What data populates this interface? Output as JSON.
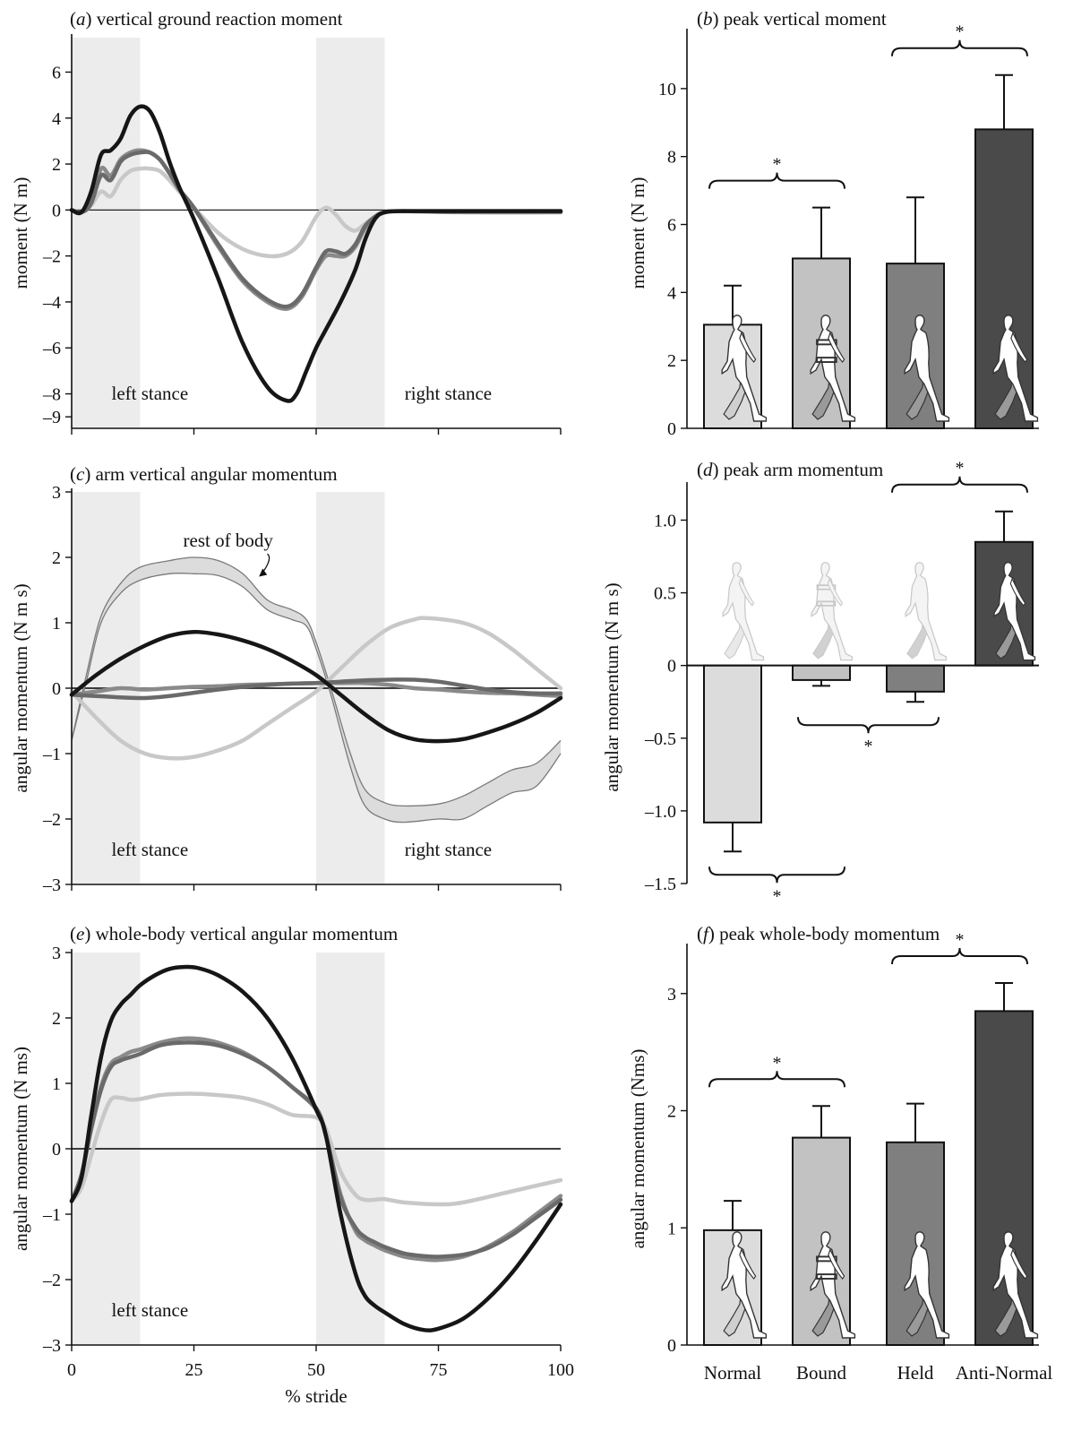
{
  "colors": {
    "normal": "#c8c8c8",
    "bound": "#8a8a8a",
    "held": "#6a6a6a",
    "anti_normal": "#161616",
    "bar_normal": "#dcdcdc",
    "bar_bound": "#c2c2c2",
    "bar_held": "#7f7f7f",
    "bar_anti": "#4a4a4a",
    "stance_shade": "#ececec"
  },
  "condition_labels": [
    "Normal",
    "Bound",
    "Held",
    "Anti-Normal"
  ],
  "line_x_label": "% stride",
  "chart_data": [
    {
      "id": "a",
      "type": "line",
      "title": "(a) vertical ground reaction moment",
      "title_letter": "a",
      "title_text": "vertical ground reaction moment",
      "ylabel": "moment (N m)",
      "xlabel": "% stride",
      "xlim": [
        0,
        100
      ],
      "ylim": [
        -9.5,
        7.5
      ],
      "y_ticks": [
        6,
        4,
        2,
        0,
        -2,
        -4,
        -6,
        -8,
        -9
      ],
      "x_ticks": [
        0,
        25,
        50,
        75,
        100
      ],
      "shaded_x": [
        [
          0,
          14
        ],
        [
          50,
          64
        ]
      ],
      "region_labels": [
        "left stance",
        "right stance"
      ],
      "series": [
        {
          "key": "normal",
          "x": [
            0,
            2,
            4,
            6,
            8,
            10,
            12,
            14,
            16,
            18,
            20,
            22,
            25,
            30,
            35,
            40,
            44,
            47,
            50,
            52,
            54,
            56,
            58,
            60,
            62,
            64,
            68,
            80,
            100
          ],
          "y": [
            0,
            -0.1,
            0.2,
            0.8,
            0.6,
            1.3,
            1.7,
            1.8,
            1.8,
            1.7,
            1.3,
            0.8,
            0.1,
            -1,
            -1.7,
            -2,
            -1.9,
            -1.4,
            -0.3,
            0.1,
            -0.2,
            -0.7,
            -0.9,
            -0.6,
            -0.3,
            -0.1,
            -0.05,
            -0.1,
            -0.1
          ]
        },
        {
          "key": "bound",
          "x": [
            0,
            2,
            4,
            6,
            8,
            10,
            12,
            14,
            16,
            18,
            20,
            22,
            25,
            30,
            35,
            40,
            44,
            47,
            50,
            52,
            54,
            56,
            58,
            60,
            62,
            64,
            68,
            80,
            100
          ],
          "y": [
            0,
            -0.1,
            0.3,
            1.8,
            1.5,
            2.2,
            2.5,
            2.6,
            2.5,
            2.2,
            1.6,
            0.9,
            0.1,
            -1.6,
            -3.1,
            -4,
            -4.3,
            -3.8,
            -2.6,
            -2,
            -2,
            -2,
            -1.6,
            -0.8,
            -0.3,
            -0.1,
            -0.05,
            -0.1,
            -0.1
          ]
        },
        {
          "key": "held",
          "x": [
            0,
            2,
            4,
            6,
            8,
            10,
            12,
            14,
            16,
            18,
            20,
            22,
            25,
            30,
            35,
            40,
            44,
            47,
            50,
            52,
            54,
            56,
            58,
            60,
            62,
            64,
            68,
            80,
            100
          ],
          "y": [
            0,
            -0.1,
            0.3,
            1.5,
            1.3,
            2.1,
            2.4,
            2.5,
            2.5,
            2.2,
            1.6,
            0.9,
            0.1,
            -1.5,
            -3,
            -3.9,
            -4.2,
            -3.7,
            -2.5,
            -1.8,
            -1.8,
            -1.9,
            -1.5,
            -0.7,
            -0.3,
            -0.1,
            -0.05,
            -0.05,
            -0.05
          ]
        },
        {
          "key": "anti_normal",
          "x": [
            0,
            2,
            4,
            6,
            8,
            10,
            12,
            14,
            16,
            18,
            20,
            22,
            25,
            30,
            35,
            40,
            44,
            46,
            48,
            50,
            52,
            55,
            58,
            60,
            62,
            64,
            68,
            80,
            100
          ],
          "y": [
            0,
            -0.1,
            0.8,
            2.4,
            2.6,
            3.1,
            4.1,
            4.5,
            4.3,
            3.4,
            2.1,
            1,
            -0.4,
            -3,
            -5.8,
            -7.7,
            -8.3,
            -8,
            -7,
            -6,
            -5.2,
            -4,
            -2.6,
            -1.3,
            -0.4,
            -0.1,
            -0.05,
            -0.05,
            -0.05
          ]
        }
      ]
    },
    {
      "id": "b",
      "type": "bar",
      "title": "(b) peak vertical moment",
      "title_letter": "b",
      "title_text": "peak vertical moment",
      "ylabel": "moment (N m)",
      "ylim": [
        0,
        11.5
      ],
      "y_ticks": [
        0,
        2,
        4,
        6,
        8,
        10
      ],
      "categories": [
        "Normal",
        "Bound",
        "Held",
        "Anti-Normal"
      ],
      "values": [
        3.05,
        5.0,
        4.85,
        8.8
      ],
      "errors": [
        1.15,
        1.5,
        1.95,
        1.6
      ],
      "significance": [
        {
          "from": 0,
          "to": 1,
          "label": "*",
          "side": "above"
        },
        {
          "from": 2,
          "to": 3,
          "label": "*",
          "side": "above"
        }
      ]
    },
    {
      "id": "c",
      "type": "line",
      "title": "(c) arm vertical angular momentum",
      "title_letter": "c",
      "title_text": "arm vertical angular momentum",
      "ylabel": "angular momentum (N m s)",
      "xlabel": "% stride",
      "xlim": [
        0,
        100
      ],
      "ylim": [
        -3,
        3
      ],
      "y_ticks": [
        3,
        2,
        1,
        0,
        -1,
        -2,
        -3
      ],
      "x_ticks": [
        0,
        25,
        50,
        75,
        100
      ],
      "shaded_x": [
        [
          0,
          14
        ],
        [
          50,
          64
        ]
      ],
      "region_labels": [
        "left stance",
        "right stance"
      ],
      "annotations": [
        "rest of body"
      ],
      "rest_of_body_band": {
        "x": [
          0,
          3,
          6,
          10,
          14,
          20,
          25,
          30,
          35,
          40,
          45,
          48,
          50,
          53,
          57,
          60,
          64,
          68,
          75,
          80,
          85,
          90,
          95,
          100
        ],
        "upper": [
          -0.8,
          0.2,
          1.1,
          1.6,
          1.85,
          1.95,
          2.0,
          1.95,
          1.75,
          1.35,
          1.2,
          1.05,
          0.7,
          0.0,
          -1.0,
          -1.55,
          -1.75,
          -1.8,
          -1.77,
          -1.65,
          -1.45,
          -1.25,
          -1.15,
          -0.8
        ],
        "lower": [
          -0.8,
          0.1,
          1.0,
          1.45,
          1.65,
          1.75,
          1.75,
          1.72,
          1.55,
          1.2,
          1.05,
          0.95,
          0.6,
          -0.1,
          -1.2,
          -1.8,
          -2.0,
          -2.05,
          -2.0,
          -2.0,
          -1.8,
          -1.6,
          -1.5,
          -1.0
        ]
      },
      "series": [
        {
          "key": "normal",
          "x": [
            0,
            5,
            10,
            15,
            20,
            25,
            30,
            35,
            40,
            45,
            50,
            55,
            60,
            65,
            70,
            73,
            80,
            85,
            90,
            95,
            100
          ],
          "y": [
            -0.05,
            -0.45,
            -0.8,
            -1.0,
            -1.07,
            -1.05,
            -0.95,
            -0.8,
            -0.55,
            -0.3,
            -0.05,
            0.3,
            0.65,
            0.92,
            1.05,
            1.07,
            1.0,
            0.85,
            0.6,
            0.3,
            0.0
          ]
        },
        {
          "key": "bound",
          "x": [
            0,
            5,
            10,
            15,
            20,
            25,
            30,
            35,
            40,
            45,
            50,
            55,
            60,
            65,
            70,
            75,
            80,
            85,
            90,
            95,
            100
          ],
          "y": [
            -0.1,
            -0.05,
            0.0,
            -0.02,
            0.0,
            0.02,
            0.03,
            0.05,
            0.06,
            0.07,
            0.08,
            0.08,
            0.08,
            0.05,
            0.0,
            -0.02,
            -0.05,
            -0.07,
            -0.08,
            -0.1,
            -0.12
          ]
        },
        {
          "key": "held",
          "x": [
            0,
            5,
            10,
            15,
            20,
            25,
            30,
            35,
            40,
            45,
            50,
            55,
            60,
            65,
            70,
            75,
            80,
            85,
            90,
            95,
            100
          ],
          "y": [
            -0.1,
            -0.12,
            -0.14,
            -0.15,
            -0.12,
            -0.07,
            -0.02,
            0.02,
            0.05,
            0.07,
            0.08,
            0.1,
            0.12,
            0.13,
            0.13,
            0.1,
            0.04,
            -0.02,
            -0.06,
            -0.08,
            -0.08
          ]
        },
        {
          "key": "anti_normal",
          "x": [
            0,
            5,
            10,
            15,
            20,
            25,
            30,
            35,
            40,
            45,
            50,
            55,
            60,
            65,
            70,
            75,
            80,
            85,
            90,
            95,
            100
          ],
          "y": [
            -0.1,
            0.2,
            0.45,
            0.65,
            0.8,
            0.86,
            0.82,
            0.73,
            0.6,
            0.42,
            0.2,
            -0.1,
            -0.4,
            -0.65,
            -0.78,
            -0.81,
            -0.78,
            -0.68,
            -0.55,
            -0.38,
            -0.15
          ]
        }
      ]
    },
    {
      "id": "d",
      "type": "bar",
      "title": "(d) peak arm momentum",
      "title_letter": "d",
      "title_text": "peak arm momentum",
      "ylabel": "angular momentum (N m s)",
      "ylim": [
        -1.5,
        1.2
      ],
      "y_ticks": [
        -1.5,
        -1.0,
        -0.5,
        0,
        0.5,
        1.0
      ],
      "y_tick_labels": [
        "–1.5",
        "–1.0",
        "–0.5",
        "0",
        "0.5",
        "1.0"
      ],
      "categories": [
        "Normal",
        "Bound",
        "Held",
        "Anti-Normal"
      ],
      "values": [
        -1.08,
        -0.1,
        -0.18,
        0.85
      ],
      "errors": [
        0.2,
        0.04,
        0.07,
        0.21
      ],
      "significance": [
        {
          "from": 2,
          "to": 3,
          "label": "*",
          "side": "above"
        },
        {
          "from": 1,
          "to": 2,
          "label": "*",
          "side": "below"
        },
        {
          "from": 0,
          "to": 1,
          "label": "*",
          "side": "below"
        }
      ]
    },
    {
      "id": "e",
      "type": "line",
      "title": "(e) whole-body vertical angular momentum",
      "title_letter": "e",
      "title_text": "whole-body vertical angular momentum",
      "ylabel": "angular momentum (N ms)",
      "xlabel": "% stride",
      "xlim": [
        0,
        100
      ],
      "ylim": [
        -3,
        3
      ],
      "y_ticks": [
        3,
        2,
        1,
        0,
        -1,
        -2,
        -3
      ],
      "x_ticks": [
        0,
        25,
        50,
        75,
        100
      ],
      "shaded_x": [
        [
          0,
          14
        ],
        [
          50,
          64
        ]
      ],
      "region_labels": [
        "left stance"
      ],
      "series": [
        {
          "key": "normal",
          "x": [
            0,
            2,
            4,
            6,
            8,
            10,
            12,
            14,
            18,
            22,
            26,
            30,
            35,
            40,
            45,
            50,
            52,
            55,
            58,
            60,
            62,
            64,
            68,
            75,
            80,
            90,
            100
          ],
          "y": [
            -0.8,
            -0.6,
            -0.1,
            0.4,
            0.75,
            0.78,
            0.75,
            0.76,
            0.82,
            0.84,
            0.84,
            0.82,
            0.78,
            0.68,
            0.52,
            0.48,
            0.3,
            -0.35,
            -0.7,
            -0.78,
            -0.78,
            -0.77,
            -0.82,
            -0.85,
            -0.82,
            -0.65,
            -0.48
          ]
        },
        {
          "key": "bound",
          "x": [
            0,
            2,
            4,
            6,
            8,
            10,
            12,
            14,
            18,
            22,
            26,
            30,
            35,
            40,
            45,
            50,
            52,
            55,
            58,
            60,
            62,
            64,
            68,
            72,
            75,
            80,
            85,
            90,
            95,
            100
          ],
          "y": [
            -0.8,
            -0.4,
            0.3,
            0.95,
            1.3,
            1.4,
            1.48,
            1.52,
            1.62,
            1.68,
            1.68,
            1.62,
            1.48,
            1.25,
            0.95,
            0.6,
            0.2,
            -0.7,
            -1.25,
            -1.4,
            -1.48,
            -1.55,
            -1.65,
            -1.69,
            -1.7,
            -1.65,
            -1.5,
            -1.28,
            -1.0,
            -0.72
          ]
        },
        {
          "key": "held",
          "x": [
            0,
            2,
            4,
            6,
            8,
            10,
            12,
            14,
            18,
            22,
            26,
            30,
            35,
            40,
            45,
            50,
            52,
            55,
            58,
            60,
            62,
            64,
            68,
            72,
            75,
            80,
            85,
            90,
            95,
            100
          ],
          "y": [
            -0.8,
            -0.4,
            0.3,
            0.9,
            1.25,
            1.35,
            1.4,
            1.45,
            1.58,
            1.62,
            1.62,
            1.58,
            1.45,
            1.25,
            0.95,
            0.62,
            0.2,
            -0.75,
            -1.2,
            -1.35,
            -1.43,
            -1.5,
            -1.6,
            -1.64,
            -1.65,
            -1.62,
            -1.52,
            -1.32,
            -1.05,
            -0.78
          ]
        },
        {
          "key": "anti_normal",
          "x": [
            0,
            2,
            4,
            6,
            8,
            10,
            12,
            14,
            17,
            20,
            23,
            26,
            30,
            35,
            40,
            45,
            50,
            52,
            55,
            58,
            60,
            62,
            64,
            68,
            72,
            75,
            80,
            85,
            90,
            95,
            100
          ],
          "y": [
            -0.8,
            -0.45,
            0.5,
            1.4,
            1.95,
            2.2,
            2.35,
            2.5,
            2.65,
            2.75,
            2.78,
            2.76,
            2.65,
            2.4,
            2.0,
            1.4,
            0.6,
            0.2,
            -1.0,
            -1.9,
            -2.25,
            -2.4,
            -2.5,
            -2.68,
            -2.77,
            -2.75,
            -2.6,
            -2.3,
            -1.9,
            -1.4,
            -0.85
          ]
        }
      ]
    },
    {
      "id": "f",
      "type": "bar",
      "title": "(f) peak whole-body momentum",
      "title_letter": "f",
      "title_text": "peak whole-body momentum",
      "ylabel": "angular momentum (Nms)",
      "ylim": [
        0,
        3.35
      ],
      "y_ticks": [
        0,
        1,
        2,
        3
      ],
      "categories": [
        "Normal",
        "Bound",
        "Held",
        "Anti-Normal"
      ],
      "values": [
        0.98,
        1.77,
        1.73,
        2.85
      ],
      "errors": [
        0.25,
        0.27,
        0.33,
        0.24
      ],
      "significance": [
        {
          "from": 0,
          "to": 1,
          "label": "*",
          "side": "above"
        },
        {
          "from": 2,
          "to": 3,
          "label": "*",
          "side": "above"
        }
      ]
    }
  ]
}
